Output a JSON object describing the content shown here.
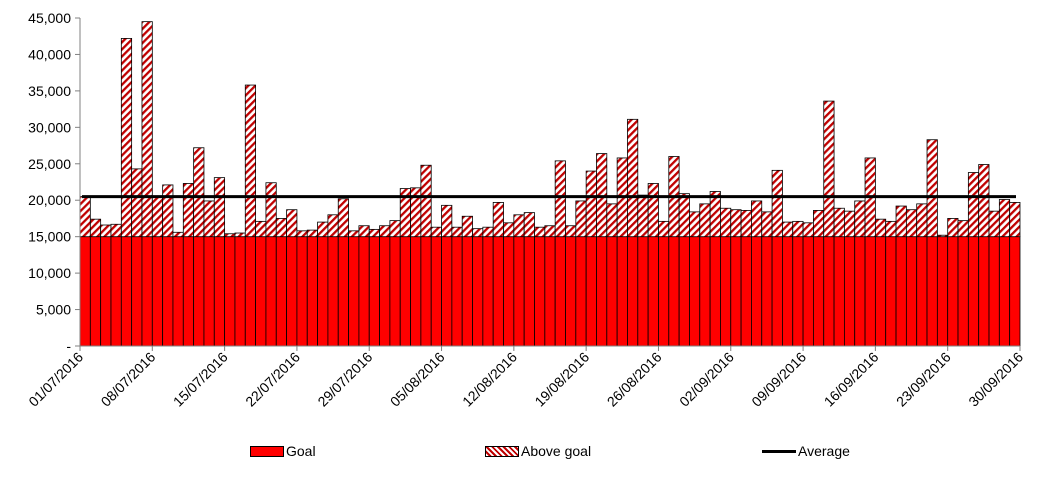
{
  "chart_data": {
    "type": "bar",
    "stacked": true,
    "title": "",
    "xlabel": "",
    "ylabel": "",
    "ylim": [
      0,
      45000
    ],
    "y_ticks": [
      0,
      5000,
      10000,
      15000,
      20000,
      25000,
      30000,
      35000,
      40000,
      45000
    ],
    "y_tick_labels": [
      "-",
      "5,000",
      "10,000",
      "15,000",
      "20,000",
      "25,000",
      "30,000",
      "35,000",
      "40,000",
      "45,000"
    ],
    "x_tick_labels": [
      "01/07/2016",
      "08/07/2016",
      "15/07/2016",
      "22/07/2016",
      "29/07/2016",
      "05/08/2016",
      "12/08/2016",
      "19/08/2016",
      "26/08/2016",
      "02/09/2016",
      "09/09/2016",
      "16/09/2016",
      "23/09/2016",
      "30/09/2016"
    ],
    "x_range": [
      "01/07/2016",
      "30/09/2016"
    ],
    "goal": 15000,
    "average": 20500,
    "totals": [
      20500,
      17400,
      16600,
      16700,
      42200,
      24300,
      44500,
      20400,
      22100,
      15600,
      22300,
      27200,
      19900,
      23100,
      15400,
      15500,
      35800,
      17100,
      22400,
      17500,
      18700,
      15800,
      15900,
      17000,
      18000,
      20200,
      15800,
      16500,
      16000,
      16500,
      17200,
      21600,
      21700,
      24800,
      16300,
      19300,
      16300,
      17800,
      16100,
      16300,
      19700,
      16900,
      18000,
      18300,
      16300,
      16500,
      25400,
      16500,
      19900,
      24000,
      26400,
      19500,
      25800,
      31100,
      20700,
      22300,
      17100,
      26000,
      20900,
      18400,
      19500,
      21200,
      18900,
      18700,
      18600,
      19900,
      18400,
      24100,
      17000,
      17100,
      16900,
      18600,
      33600,
      18900,
      18500,
      19900,
      25800,
      17400,
      17100,
      19200,
      18700,
      19500,
      28300,
      15200,
      17500,
      17200,
      23800,
      24900,
      18500,
      20100,
      19700
    ],
    "legend": [
      {
        "name": "Goal",
        "color": "#ff0000"
      },
      {
        "name": "Above goal",
        "color": "#c00000",
        "pattern": "diagonal-hatch"
      },
      {
        "name": "Average",
        "color": "#000000",
        "style": "line"
      }
    ],
    "legend_position": "bottom",
    "grid": false
  }
}
